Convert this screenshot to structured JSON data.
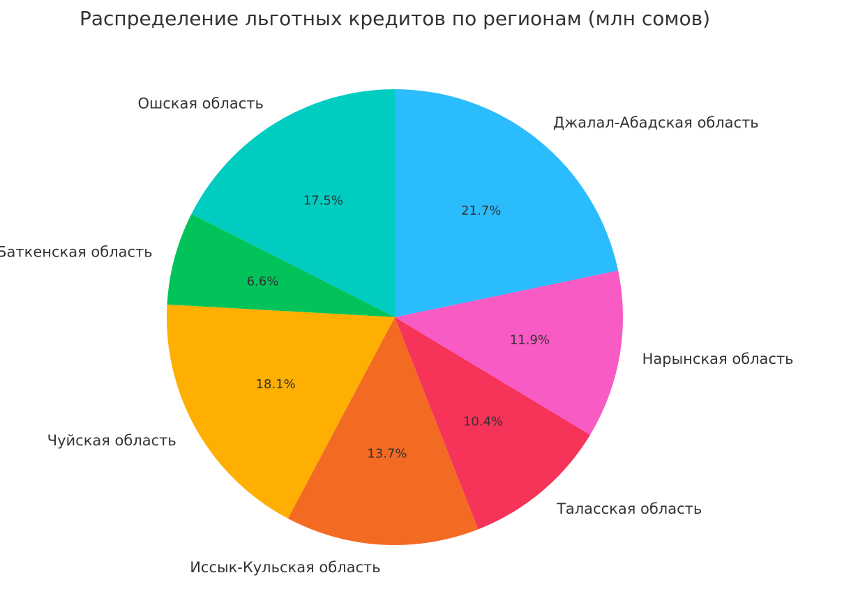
{
  "chart_data": {
    "type": "pie",
    "title": "Распределение льготных кредитов по регионам (млн сомов)",
    "start_angle_deg": 90,
    "direction": "counterclockwise",
    "slices": [
      {
        "label": "Ошская область",
        "percent": 17.5,
        "percent_label": "17.5%",
        "color": "#00CCC0"
      },
      {
        "label": "Баткенская область",
        "percent": 6.6,
        "percent_label": "6.6%",
        "color": "#02C35A"
      },
      {
        "label": "Чуйская область",
        "percent": 18.1,
        "percent_label": "18.1%",
        "color": "#FEAF02"
      },
      {
        "label": "Иссык-Кульская область",
        "percent": 13.7,
        "percent_label": "13.7%",
        "color": "#F36B23"
      },
      {
        "label": "Таласская область",
        "percent": 10.4,
        "percent_label": "10.4%",
        "color": "#F63358"
      },
      {
        "label": "Нарынская область",
        "percent": 11.9,
        "percent_label": "11.9%",
        "color": "#F95BC4"
      },
      {
        "label": "Джалал-Абадская область",
        "percent": 21.7,
        "percent_label": "21.7%",
        "color": "#2BBCFD"
      }
    ]
  }
}
